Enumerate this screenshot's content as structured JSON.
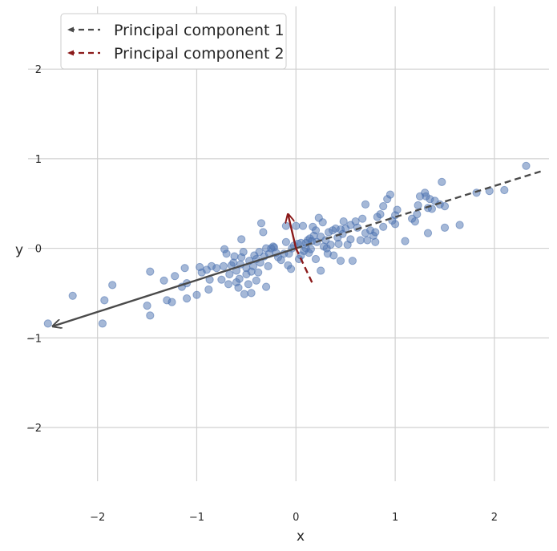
{
  "chart_data": {
    "type": "scatter",
    "xlabel": "x",
    "ylabel": "y",
    "xlim": [
      -2.7,
      2.55
    ],
    "ylim": [
      -2.6,
      2.7
    ],
    "xticks": [
      -2,
      -1,
      0,
      1,
      2
    ],
    "yticks": [
      -2,
      -1,
      0,
      1,
      2
    ],
    "xtick_labels": [
      "−2",
      "−1",
      "0",
      "1",
      "2"
    ],
    "ytick_labels": [
      "−2",
      "−1",
      "0",
      "1",
      "2"
    ],
    "grid": true,
    "legend_position": "top-left",
    "colors": {
      "points": "#4c72b0",
      "pc1": "#4a4a4a",
      "pc2": "#8b1a1a",
      "grid": "#d0d0d0"
    },
    "points": [
      [
        -2.5,
        -0.84
      ],
      [
        -2.25,
        -0.53
      ],
      [
        -1.95,
        -0.84
      ],
      [
        -1.93,
        -0.58
      ],
      [
        -1.85,
        -0.41
      ],
      [
        -1.5,
        -0.64
      ],
      [
        -1.47,
        -0.26
      ],
      [
        -1.47,
        -0.75
      ],
      [
        -1.33,
        -0.36
      ],
      [
        -1.3,
        -0.58
      ],
      [
        -1.25,
        -0.6
      ],
      [
        -1.22,
        -0.31
      ],
      [
        -1.15,
        -0.43
      ],
      [
        -1.12,
        -0.22
      ],
      [
        -1.1,
        -0.56
      ],
      [
        -1.1,
        -0.39
      ],
      [
        -1.0,
        -0.52
      ],
      [
        -0.97,
        -0.21
      ],
      [
        -0.95,
        -0.27
      ],
      [
        -0.9,
        -0.24
      ],
      [
        -0.88,
        -0.46
      ],
      [
        -0.87,
        -0.35
      ],
      [
        -0.85,
        -0.2
      ],
      [
        -0.8,
        -0.22
      ],
      [
        -0.75,
        -0.35
      ],
      [
        -0.73,
        -0.2
      ],
      [
        -0.72,
        -0.01
      ],
      [
        -0.7,
        -0.06
      ],
      [
        -0.68,
        -0.4
      ],
      [
        -0.67,
        -0.29
      ],
      [
        -0.65,
        -0.19
      ],
      [
        -0.63,
        -0.16
      ],
      [
        -0.62,
        -0.09
      ],
      [
        -0.6,
        -0.25
      ],
      [
        -0.6,
        -0.38
      ],
      [
        -0.58,
        -0.44
      ],
      [
        -0.57,
        -0.34
      ],
      [
        -0.56,
        -0.18
      ],
      [
        -0.55,
        -0.1
      ],
      [
        -0.55,
        0.1
      ],
      [
        -0.53,
        -0.04
      ],
      [
        -0.52,
        -0.51
      ],
      [
        -0.5,
        -0.29
      ],
      [
        -0.5,
        -0.22
      ],
      [
        -0.48,
        -0.4
      ],
      [
        -0.47,
        -0.14
      ],
      [
        -0.45,
        -0.26
      ],
      [
        -0.45,
        -0.5
      ],
      [
        -0.43,
        -0.2
      ],
      [
        -0.42,
        -0.08
      ],
      [
        -0.4,
        -0.12
      ],
      [
        -0.4,
        -0.36
      ],
      [
        -0.38,
        -0.27
      ],
      [
        -0.37,
        -0.04
      ],
      [
        -0.36,
        -0.16
      ],
      [
        -0.35,
        0.28
      ],
      [
        -0.33,
        0.18
      ],
      [
        -0.32,
        -0.09
      ],
      [
        -0.3,
        0.0
      ],
      [
        -0.3,
        -0.43
      ],
      [
        -0.28,
        -0.2
      ],
      [
        -0.27,
        -0.06
      ],
      [
        -0.25,
        0.0
      ],
      [
        -0.23,
        0.02
      ],
      [
        -0.22,
        0.01
      ],
      [
        -0.2,
        -0.05
      ],
      [
        -0.18,
        -0.1
      ],
      [
        -0.15,
        -0.13
      ],
      [
        -0.12,
        -0.06
      ],
      [
        -0.1,
        0.07
      ],
      [
        -0.1,
        0.25
      ],
      [
        -0.08,
        -0.19
      ],
      [
        -0.07,
        -0.06
      ],
      [
        -0.05,
        -0.23
      ],
      [
        -0.04,
        0.0
      ],
      [
        -0.02,
        0.03
      ],
      [
        0.0,
        0.25
      ],
      [
        0.02,
        0.05
      ],
      [
        0.03,
        -0.12
      ],
      [
        0.05,
        -0.08
      ],
      [
        0.05,
        0.06
      ],
      [
        0.07,
        0.25
      ],
      [
        0.08,
        -0.03
      ],
      [
        0.1,
        0.0
      ],
      [
        0.1,
        0.06
      ],
      [
        0.12,
        0.09
      ],
      [
        0.13,
        -0.05
      ],
      [
        0.14,
        0.11
      ],
      [
        0.15,
        -0.01
      ],
      [
        0.16,
        0.08
      ],
      [
        0.17,
        0.24
      ],
      [
        0.18,
        0.14
      ],
      [
        0.2,
        -0.12
      ],
      [
        0.2,
        0.2
      ],
      [
        0.21,
        0.07
      ],
      [
        0.23,
        0.34
      ],
      [
        0.25,
        -0.25
      ],
      [
        0.25,
        0.13
      ],
      [
        0.27,
        0.29
      ],
      [
        0.28,
        0.02
      ],
      [
        0.3,
        0.09
      ],
      [
        0.31,
        0.0
      ],
      [
        0.32,
        -0.06
      ],
      [
        0.33,
        0.18
      ],
      [
        0.35,
        0.04
      ],
      [
        0.37,
        0.2
      ],
      [
        0.38,
        -0.08
      ],
      [
        0.4,
        0.22
      ],
      [
        0.42,
        0.12
      ],
      [
        0.43,
        0.05
      ],
      [
        0.45,
        0.21
      ],
      [
        0.45,
        -0.14
      ],
      [
        0.47,
        0.16
      ],
      [
        0.48,
        0.3
      ],
      [
        0.5,
        0.22
      ],
      [
        0.52,
        0.04
      ],
      [
        0.55,
        0.1
      ],
      [
        0.55,
        0.26
      ],
      [
        0.57,
        -0.14
      ],
      [
        0.6,
        0.3
      ],
      [
        0.62,
        0.23
      ],
      [
        0.65,
        0.09
      ],
      [
        0.67,
        0.33
      ],
      [
        0.7,
        0.49
      ],
      [
        0.7,
        0.17
      ],
      [
        0.72,
        0.09
      ],
      [
        0.75,
        0.2
      ],
      [
        0.78,
        0.14
      ],
      [
        0.8,
        0.07
      ],
      [
        0.8,
        0.18
      ],
      [
        0.82,
        0.35
      ],
      [
        0.85,
        0.38
      ],
      [
        0.88,
        0.47
      ],
      [
        0.88,
        0.24
      ],
      [
        0.92,
        0.55
      ],
      [
        0.95,
        0.6
      ],
      [
        0.97,
        0.31
      ],
      [
        1.0,
        0.27
      ],
      [
        1.0,
        0.37
      ],
      [
        1.02,
        0.43
      ],
      [
        1.1,
        0.08
      ],
      [
        1.17,
        0.33
      ],
      [
        1.2,
        0.3
      ],
      [
        1.22,
        0.38
      ],
      [
        1.23,
        0.48
      ],
      [
        1.25,
        0.58
      ],
      [
        1.3,
        0.62
      ],
      [
        1.31,
        0.58
      ],
      [
        1.33,
        0.45
      ],
      [
        1.33,
        0.17
      ],
      [
        1.35,
        0.55
      ],
      [
        1.37,
        0.44
      ],
      [
        1.4,
        0.53
      ],
      [
        1.45,
        0.49
      ],
      [
        1.47,
        0.74
      ],
      [
        1.5,
        0.47
      ],
      [
        1.5,
        0.23
      ],
      [
        1.65,
        0.26
      ],
      [
        1.82,
        0.62
      ],
      [
        1.95,
        0.64
      ],
      [
        2.1,
        0.65
      ],
      [
        2.32,
        0.92
      ]
    ],
    "pc1": {
      "arrow_tip": [
        -2.45,
        -0.87
      ],
      "line_start": [
        0.0,
        0.0
      ],
      "line_end": [
        2.5,
        0.87
      ]
    },
    "pc2": {
      "arrow_tip": [
        -0.08,
        0.38
      ],
      "line_start": [
        0.0,
        0.0
      ],
      "line_end": [
        0.17,
        -0.4
      ]
    },
    "legend": [
      {
        "label": "Principal component 1",
        "color": "#4a4a4a"
      },
      {
        "label": "Principal component 2",
        "color": "#8b1a1a"
      }
    ]
  }
}
